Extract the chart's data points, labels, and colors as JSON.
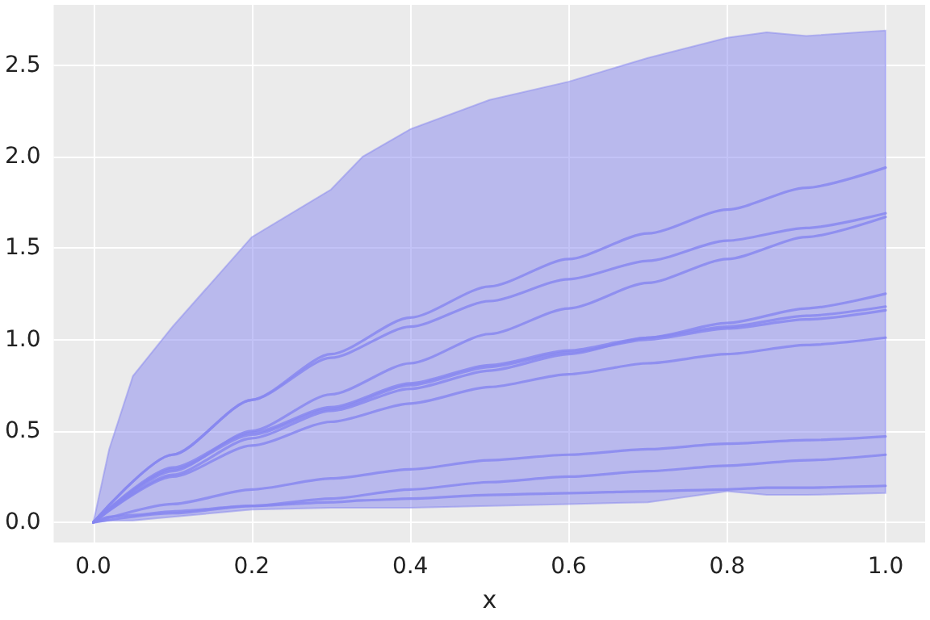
{
  "chart_data": {
    "type": "line",
    "xlabel": "x",
    "xlim": [
      -0.05,
      1.05
    ],
    "ylim": [
      -0.11,
      2.83
    ],
    "xticks": [
      {
        "value": 0,
        "label": "0.0"
      },
      {
        "value": 0.2,
        "label": "0.2"
      },
      {
        "value": 0.4,
        "label": "0.4"
      },
      {
        "value": 0.6,
        "label": "0.6"
      },
      {
        "value": 0.8,
        "label": "0.8"
      },
      {
        "value": 1,
        "label": "1.0"
      }
    ],
    "yticks": [
      {
        "value": 0,
        "label": "0.0"
      },
      {
        "value": 0.5,
        "label": "0.5"
      },
      {
        "value": 1,
        "label": "1.0"
      },
      {
        "value": 1.5,
        "label": "1.5"
      },
      {
        "value": 2,
        "label": "2.0"
      },
      {
        "value": 2.5,
        "label": "2.5"
      }
    ],
    "grid": true,
    "marker": "none",
    "line_style": "solid",
    "x": [
      0,
      0.1,
      0.2,
      0.3,
      0.4,
      0.5,
      0.6,
      0.7,
      0.8,
      0.9,
      1
    ],
    "series": [
      {
        "color": "#8787f0",
        "x": [
          0,
          0.02,
          0.05,
          0.1,
          0.2,
          0.3,
          0.34,
          0.4,
          0.5,
          0.6,
          0.7,
          0.8,
          0.85,
          0.9,
          1
        ],
        "values": [
          0,
          0.03,
          0.04,
          0.06,
          0.09,
          0.11,
          0.12,
          0.13,
          0.15,
          0.16,
          0.17,
          0.18,
          0.19,
          0.19,
          0.2
        ],
        "lower": [
          0,
          0.01,
          0.01,
          0.03,
          0.07,
          0.08,
          0.08,
          0.08,
          0.09,
          0.1,
          0.11,
          0.17,
          0.15,
          0.15,
          0.16
        ],
        "upper": [
          0,
          0.4,
          0.8,
          1.07,
          1.56,
          1.82,
          2.0,
          2.15,
          2.31,
          2.41,
          2.54,
          2.65,
          2.68,
          2.66,
          2.69
        ]
      },
      {
        "color": "#8787f0",
        "values": [
          0,
          0.37,
          0.67,
          0.92,
          1.12,
          1.29,
          1.44,
          1.58,
          1.71,
          1.83,
          1.94
        ]
      },
      {
        "color": "#8787f0",
        "values": [
          0,
          0.37,
          0.67,
          0.9,
          1.07,
          1.21,
          1.33,
          1.43,
          1.54,
          1.61,
          1.69
        ]
      },
      {
        "color": "#8787f0",
        "values": [
          0,
          0.28,
          0.5,
          0.7,
          0.87,
          1.03,
          1.17,
          1.31,
          1.44,
          1.56,
          1.67
        ]
      },
      {
        "color": "#8787f0",
        "values": [
          0,
          0.26,
          0.46,
          0.61,
          0.73,
          0.83,
          0.92,
          1.01,
          1.09,
          1.17,
          1.25
        ]
      },
      {
        "color": "#8787f0",
        "values": [
          0,
          0.3,
          0.49,
          0.63,
          0.76,
          0.86,
          0.94,
          1.01,
          1.07,
          1.13,
          1.18
        ]
      },
      {
        "color": "#8787f0",
        "values": [
          0,
          0.29,
          0.48,
          0.62,
          0.75,
          0.85,
          0.93,
          1.0,
          1.06,
          1.11,
          1.16
        ]
      },
      {
        "color": "#8787f0",
        "values": [
          0,
          0.25,
          0.42,
          0.55,
          0.65,
          0.74,
          0.81,
          0.87,
          0.92,
          0.97,
          1.01
        ]
      },
      {
        "color": "#8787f0",
        "values": [
          0,
          0.1,
          0.18,
          0.24,
          0.29,
          0.34,
          0.37,
          0.4,
          0.43,
          0.45,
          0.47
        ]
      },
      {
        "color": "#8787f0",
        "values": [
          0,
          0.05,
          0.09,
          0.13,
          0.18,
          0.22,
          0.25,
          0.28,
          0.31,
          0.34,
          0.37
        ]
      }
    ]
  }
}
